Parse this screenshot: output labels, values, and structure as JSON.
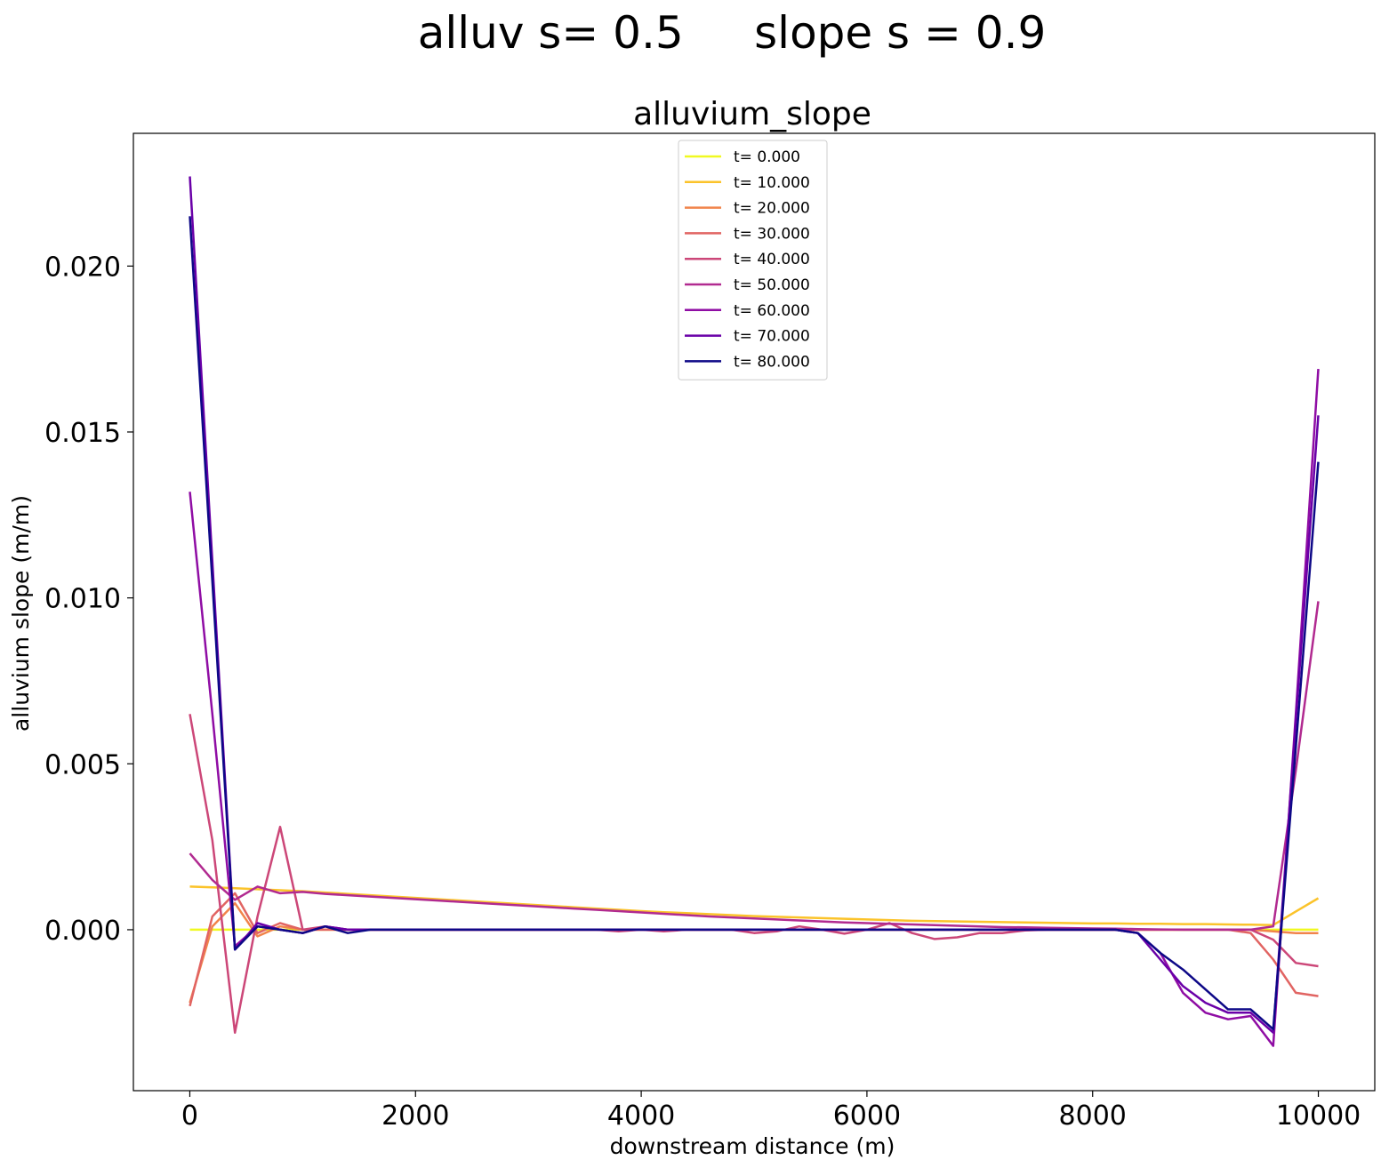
{
  "suptitle": "alluv s= 0.5     slope s = 0.9",
  "chart_data": {
    "type": "line",
    "title": "alluvium_slope",
    "xlabel": "downstream distance (m)",
    "ylabel": "alluvium slope (m/m)",
    "xlim": [
      -500,
      10500
    ],
    "ylim": [
      -0.00485,
      0.024
    ],
    "xticks": [
      0,
      2000,
      4000,
      6000,
      8000,
      10000
    ],
    "xtick_labels": [
      "0",
      "2000",
      "4000",
      "6000",
      "8000",
      "10000"
    ],
    "yticks": [
      0.0,
      0.005,
      0.01,
      0.015,
      0.02
    ],
    "ytick_labels": [
      "0.000",
      "0.005",
      "0.010",
      "0.015",
      "0.020"
    ],
    "grid": false,
    "legend_position": "top-center",
    "x": [
      0,
      200,
      400,
      600,
      800,
      1000,
      1200,
      1400,
      1600,
      1800,
      2000,
      2200,
      2400,
      2600,
      2800,
      3000,
      3200,
      3400,
      3600,
      3800,
      4000,
      4200,
      4400,
      4600,
      4800,
      5000,
      5200,
      5400,
      5600,
      5800,
      6000,
      6200,
      6400,
      6600,
      6800,
      7000,
      7200,
      7400,
      7600,
      7800,
      8000,
      8200,
      8400,
      8600,
      8800,
      9000,
      9200,
      9400,
      9600,
      9800,
      10000
    ],
    "series": [
      {
        "name": "t= 0.000",
        "color": "#f0f921",
        "values": [
          0,
          0,
          0,
          0,
          0,
          0,
          0,
          0,
          0,
          0,
          0,
          0,
          0,
          0,
          0,
          0,
          0,
          0,
          0,
          0,
          0,
          0,
          0,
          0,
          0,
          0,
          0,
          0,
          0,
          0,
          0,
          0,
          0,
          0,
          0,
          0,
          0,
          0,
          0,
          0,
          0,
          0,
          0,
          0,
          0,
          0,
          0,
          0,
          0,
          0,
          0
        ]
      },
      {
        "name": "t= 10.000",
        "color": "#fbc32a",
        "values": [
          0.0013,
          0.00128,
          0.00125,
          0.00122,
          0.00119,
          0.00116,
          0.00112,
          0.00108,
          0.00104,
          0.001,
          0.00096,
          0.00092,
          0.00088,
          0.00084,
          0.0008,
          0.00076,
          0.00072,
          0.00068,
          0.00064,
          0.0006,
          0.00056,
          0.00053,
          0.0005,
          0.00047,
          0.00044,
          0.00041,
          0.00039,
          0.00037,
          0.00035,
          0.00033,
          0.00031,
          0.00029,
          0.00027,
          0.00026,
          0.00025,
          0.00024,
          0.00023,
          0.00022,
          0.00021,
          0.0002,
          0.00019,
          0.00019,
          0.00018,
          0.00018,
          0.00017,
          0.00017,
          0.00016,
          0.00015,
          0.00014,
          0.00055,
          0.00095
        ]
      },
      {
        "name": "t= 20.000",
        "color": "#f1844b",
        "values": [
          -0.0022,
          0.0001,
          0.0008,
          -0.0002,
          0.0001,
          0.0,
          0,
          0,
          0,
          0,
          0,
          0,
          0,
          0,
          0,
          0,
          0,
          0,
          0,
          0,
          0,
          0,
          0,
          0,
          0,
          0,
          0,
          0,
          0,
          0,
          0,
          0,
          0,
          0,
          0,
          0,
          0,
          0,
          0,
          0,
          0,
          0,
          0,
          0,
          0,
          0,
          0,
          0,
          -5e-05,
          -0.0001,
          -0.0001
        ]
      },
      {
        "name": "t= 30.000",
        "color": "#e16462",
        "values": [
          -0.0023,
          0.0004,
          0.0011,
          -0.0001,
          0.0002,
          0.0,
          0,
          0,
          0,
          0,
          0,
          0,
          0,
          0,
          0,
          0,
          0,
          0,
          0,
          0,
          0,
          0,
          0,
          0,
          0,
          0,
          0,
          0,
          0,
          0,
          0,
          0,
          0,
          0,
          0,
          0,
          0,
          0,
          0,
          0,
          0,
          0,
          0,
          0,
          0,
          0,
          0,
          -0.0001,
          -0.0009,
          -0.0019,
          -0.002
        ]
      },
      {
        "name": "t= 40.000",
        "color": "#cc4778",
        "values": [
          0.0065,
          0.0027,
          -0.0031,
          0.0004,
          0.0031,
          0.0,
          0.0001,
          0.0,
          0.0,
          0.0,
          0.0,
          0.0,
          0.0,
          0.0,
          0.0,
          0.0,
          0.0,
          0.0,
          0.0,
          -5e-05,
          0.0,
          -5e-05,
          0.0,
          0.0,
          0.0,
          -0.0001,
          -5e-05,
          0.0001,
          0.0,
          -0.00012,
          0.0,
          0.0002,
          -0.0001,
          -0.00028,
          -0.00023,
          -0.0001,
          -0.0001,
          -2e-05,
          0.0,
          0.0,
          0.0,
          0.0,
          0.0,
          0.0,
          0.0,
          0.0,
          0.0,
          0.0,
          -0.0003,
          -0.001,
          -0.0011
        ]
      },
      {
        "name": "t= 50.000",
        "color": "#b12a90",
        "values": [
          0.0023,
          0.0015,
          0.0009,
          0.0013,
          0.0011,
          0.00114,
          0.00108,
          0.00104,
          0.001,
          0.00096,
          0.00092,
          0.00088,
          0.00084,
          0.0008,
          0.00076,
          0.00072,
          0.00068,
          0.00064,
          0.0006,
          0.00056,
          0.00052,
          0.00048,
          0.00044,
          0.0004,
          0.00037,
          0.00034,
          0.00031,
          0.00028,
          0.00025,
          0.00022,
          0.0002,
          0.00018,
          0.00016,
          0.00014,
          0.00012,
          0.0001,
          8e-05,
          7e-05,
          6e-05,
          5e-05,
          4e-05,
          3e-05,
          2e-05,
          1e-05,
          0.0,
          0.0,
          0.0,
          0.0,
          0.0001,
          0.0048,
          0.0099
        ]
      },
      {
        "name": "t= 60.000",
        "color": "#8f0da4",
        "values": [
          0.0132,
          0.0065,
          -0.0005,
          0.0001,
          0.0,
          -0.0001,
          0.0001,
          0.0,
          0.0,
          0,
          0,
          0,
          0,
          0,
          0,
          0,
          0,
          0,
          0,
          0,
          0,
          0,
          0,
          0,
          0,
          0,
          0,
          0,
          0,
          0,
          0,
          0,
          0,
          0,
          0,
          0,
          0,
          0,
          0,
          0,
          0,
          0,
          -0.0001,
          -0.0007,
          -0.0019,
          -0.0025,
          -0.0027,
          -0.0026,
          -0.0035,
          0.0065,
          0.0169
        ]
      },
      {
        "name": "t= 70.000",
        "color": "#6a00a8",
        "values": [
          0.0227,
          0.0111,
          -0.0006,
          0.0002,
          0.0,
          -0.0001,
          0.0001,
          0.0,
          0.0,
          0,
          0,
          0,
          0,
          0,
          0,
          0,
          0,
          0,
          0,
          0,
          0,
          0,
          0,
          0,
          0,
          0,
          0,
          0,
          0,
          0,
          0,
          0,
          0,
          0,
          0,
          0,
          0,
          0,
          0,
          0,
          0,
          0,
          -0.0001,
          -0.0009,
          -0.0017,
          -0.0022,
          -0.0025,
          -0.0025,
          -0.0031,
          0.0063,
          0.0155
        ]
      },
      {
        "name": "t= 80.000",
        "color": "#0d0887",
        "values": [
          0.0215,
          0.0105,
          -0.0006,
          0.0001,
          0.0,
          -0.0001,
          0.0001,
          -0.0001,
          0.0,
          0,
          0,
          0,
          0,
          0,
          0,
          0,
          0,
          0,
          0,
          0,
          0,
          0,
          0,
          0,
          0,
          0,
          0,
          0,
          0,
          0,
          0,
          0,
          0,
          0,
          0,
          0,
          0,
          0,
          0,
          0,
          0,
          0,
          -0.0001,
          -0.0007,
          -0.0012,
          -0.0018,
          -0.0024,
          -0.0024,
          -0.003,
          0.0055,
          0.0141
        ]
      }
    ]
  }
}
